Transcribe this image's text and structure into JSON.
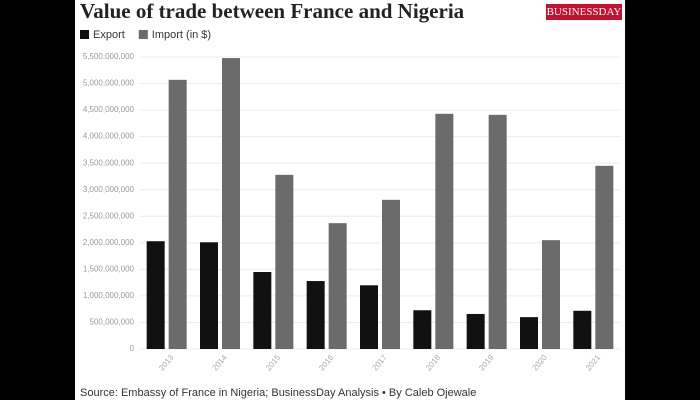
{
  "chart_data": {
    "type": "bar",
    "title": "Value of trade between France and Nigeria",
    "logo": "BUSINESSDAY",
    "categories": [
      "2013",
      "2014",
      "2015",
      "2016",
      "2017",
      "2018",
      "2019",
      "2020",
      "2021"
    ],
    "series": [
      {
        "name": "Export",
        "color": "#111111",
        "values": [
          2030000000,
          2010000000,
          1450000000,
          1280000000,
          1200000000,
          730000000,
          660000000,
          600000000,
          720000000
        ]
      },
      {
        "name": "Import (in $)",
        "color": "#6b6b6b",
        "values": [
          5070000000,
          5480000000,
          3280000000,
          2370000000,
          2810000000,
          4430000000,
          4410000000,
          2050000000,
          3450000000
        ]
      }
    ],
    "ylim": [
      0,
      5500000000
    ],
    "yticks": [
      0,
      {
        "value": 500000000,
        "label": "500,000,000"
      },
      {
        "value": 1000000000,
        "label": "1,000,000,000"
      },
      {
        "value": 1500000000,
        "label": "1,500,000,000"
      },
      {
        "value": 2000000000,
        "label": "2,000,000,000"
      },
      {
        "value": 2500000000,
        "label": "2,500,000,000"
      },
      {
        "value": 3000000000,
        "label": "3,000,000,000"
      },
      {
        "value": 3500000000,
        "label": "3,500,000,000"
      },
      {
        "value": 4000000000,
        "label": "4,000,000,000"
      },
      {
        "value": 4500000000,
        "label": "4,500,000,000"
      },
      {
        "value": 5000000000,
        "label": "5,000,000,000"
      },
      {
        "value": 5500000000,
        "label": "5,500,000,000"
      }
    ],
    "grid": true,
    "source": "Source: Embassy of France in Nigeria; BusinessDay Analysis • By Caleb Ojewale"
  }
}
